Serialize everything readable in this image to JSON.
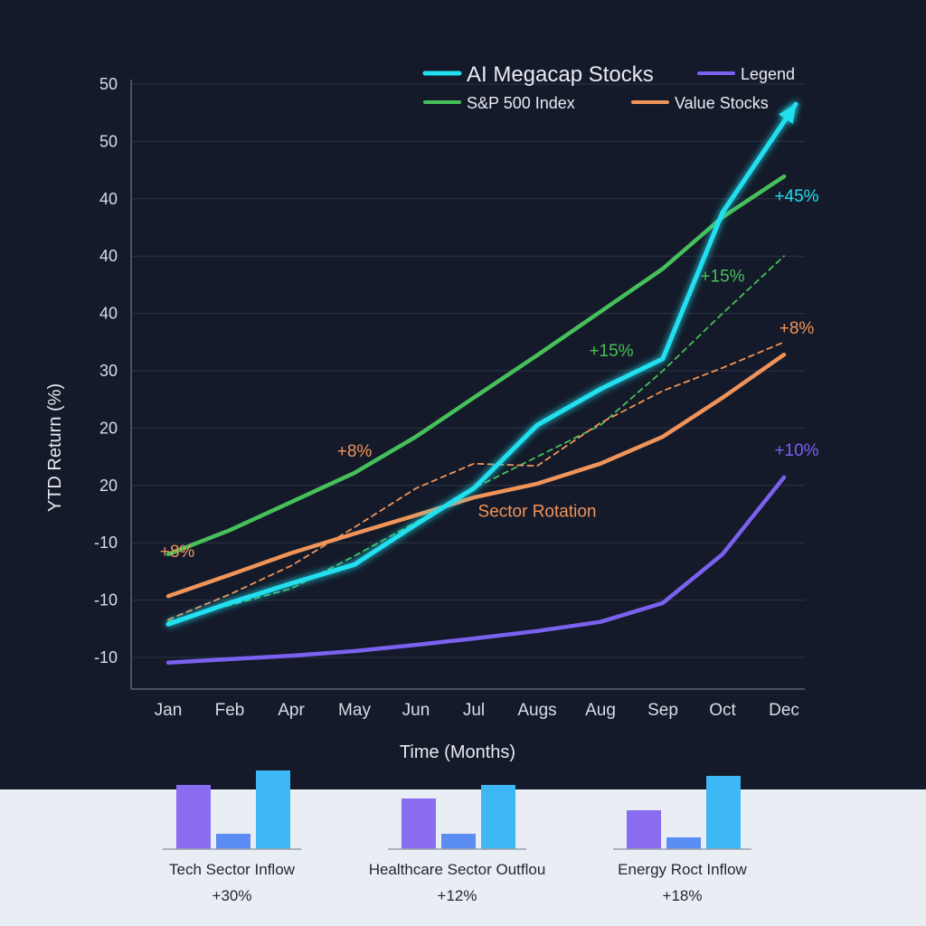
{
  "chart_data": {
    "type": "line",
    "title": "",
    "xlabel": "Time (Months)",
    "ylabel": "YTD Return (%)",
    "categories": [
      "Jan",
      "Feb",
      "Apr",
      "May",
      "Jun",
      "Jul",
      "Augs",
      "Aug",
      "Sep",
      "Oct",
      "Dec"
    ],
    "y_tick_labels": [
      "50",
      "50",
      "40",
      "40",
      "40",
      "30",
      "20",
      "20",
      "-10",
      "-10",
      "-10"
    ],
    "ylim": [
      -55,
      52
    ],
    "grid": "horizontal",
    "legend_position": "top-right",
    "legend": [
      {
        "name": "AI Megacap Stocks",
        "color": "#22e0f0"
      },
      {
        "name": "Legend",
        "color": "#7b61f0"
      },
      {
        "name": "S&P 500 Index",
        "color": "#46c05a"
      },
      {
        "name": "Value Stocks",
        "color": "#f0945a"
      }
    ],
    "series": [
      {
        "name": "AI Megacap Stocks",
        "color": "#22e0f0",
        "style": "solid-arrow",
        "values": [
          -44.2,
          -40.5,
          -37.1,
          -33.8,
          -26.8,
          -20.5,
          -9.5,
          -3.2,
          2.1,
          27.6,
          46.5
        ]
      },
      {
        "name": "S&P 500 Index",
        "color": "#46c05a",
        "style": "solid",
        "values": [
          -32,
          -27.8,
          -22.9,
          -17.8,
          -11.5,
          -4.7,
          2.7,
          10.3,
          17.8,
          26.8,
          33.9
        ]
      },
      {
        "name": "Value Stocks",
        "color": "#f0945a",
        "style": "solid",
        "values": [
          -39.3,
          -35.6,
          -31.8,
          -28.4,
          -25.2,
          -22.1,
          -19.7,
          -16.2,
          -11.5,
          -4.7,
          2.8
        ]
      },
      {
        "name": "Legend",
        "color": "#7b61f0",
        "style": "solid",
        "values": [
          -50.9,
          -50.3,
          -49.7,
          -48.9,
          -47.8,
          -46.7,
          -45.4,
          -43.8,
          -40.5,
          -32,
          -18.6
        ]
      },
      {
        "color": "#46c05a",
        "style": "dashed",
        "values": [
          -43.7,
          -40.9,
          -38,
          -32.3,
          -26.4,
          -20.5,
          -15,
          -9.5,
          0,
          10,
          20
        ]
      },
      {
        "color": "#f0945a",
        "style": "dashed",
        "values": [
          -43.4,
          -39,
          -34,
          -27.3,
          -20.5,
          -16.2,
          -16.6,
          -9.1,
          -3.5,
          0.5,
          5
        ]
      }
    ],
    "annotations": [
      {
        "text": "+8%",
        "color": "#f0945a",
        "x": "Jan",
        "y": -32.5
      },
      {
        "text": "+8%",
        "color": "#f0945a",
        "x": "May",
        "y": -15
      },
      {
        "text": "+15%",
        "color": "#46c05a",
        "x": "Aug",
        "y": 2.5
      },
      {
        "text": "+15%",
        "color": "#46c05a",
        "x": "Oct",
        "y": 15.5
      },
      {
        "text": "+45%",
        "color": "#22e0f0",
        "x": "Dec",
        "y": 29.5
      },
      {
        "text": "+8%",
        "color": "#f0945a",
        "x": "Dec",
        "y": 6.5
      },
      {
        "text": "+10%",
        "color": "#7b61f0",
        "x": "Dec",
        "y": -14.8
      },
      {
        "text": "Sector Rotation",
        "color": "#f0945a",
        "x": "Augs",
        "y": -25.5
      }
    ]
  },
  "mini_charts": [
    {
      "label": "Tech Sector Inflow",
      "value": "+30%",
      "bars": [
        71,
        17,
        87
      ]
    },
    {
      "label": "Healthcare Sector Outflou",
      "value": "+12%",
      "bars": [
        56,
        17,
        71
      ]
    },
    {
      "label": "Energy Roct Inflow",
      "value": "+18%",
      "bars": [
        43,
        13,
        81
      ]
    }
  ],
  "mini_bar_colors": [
    "#8a6cf0",
    "#5b8cf2",
    "#3db8f5"
  ]
}
